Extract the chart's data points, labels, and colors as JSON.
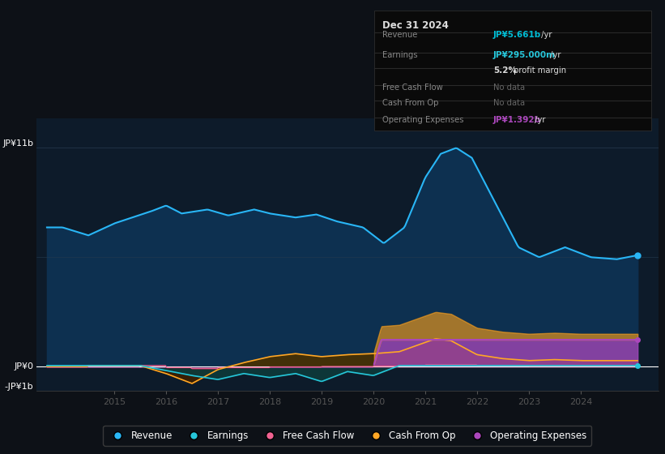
{
  "bg_color": "#0d1117",
  "plot_bg_color": "#0d1b2a",
  "ylabel_top": "JP¥11b",
  "ylabel_zero": "JP¥0",
  "ylabel_neg": "-JP¥1b",
  "grid_color": "#263a4f",
  "revenue_color": "#29b6f6",
  "earnings_color": "#26c6da",
  "fcf_color": "#f06292",
  "cashfromop_color": "#ffa726",
  "opex_color": "#ab47bc",
  "revenue_fill": "#0d3050",
  "legend_labels": [
    "Revenue",
    "Earnings",
    "Free Cash Flow",
    "Cash From Op",
    "Operating Expenses"
  ],
  "legend_colors": [
    "#29b6f6",
    "#26c6da",
    "#f06292",
    "#ffa726",
    "#ab47bc"
  ],
  "info_box": {
    "date": "Dec 31 2024",
    "revenue_label": "Revenue",
    "revenue_val": "JP¥5.661b",
    "revenue_suffix": " /yr",
    "earnings_label": "Earnings",
    "earnings_val": "JP¥295.000m",
    "earnings_suffix": " /yr",
    "margin_bold": "5.2%",
    "margin_rest": " profit margin",
    "fcf_label": "Free Cash Flow",
    "fcf_val": "No data",
    "cashop_label": "Cash From Op",
    "cashop_val": "No data",
    "opex_label": "Operating Expenses",
    "opex_val": "JP¥1.392b",
    "opex_suffix": " /yr"
  },
  "ylim": [
    -1.2,
    12.5
  ],
  "xlim": [
    2013.5,
    2025.5
  ],
  "year_ticks": [
    2015,
    2016,
    2017,
    2018,
    2019,
    2020,
    2021,
    2022,
    2023,
    2024
  ]
}
